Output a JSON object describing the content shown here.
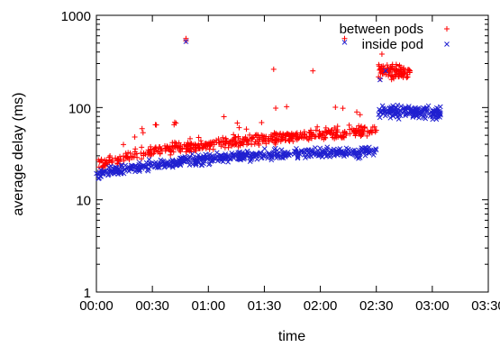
{
  "chart_data": {
    "type": "scatter",
    "title": "",
    "xlabel": "time",
    "ylabel": "average delay (ms)",
    "x_ticks": [
      "00:00",
      "00:30",
      "01:00",
      "01:30",
      "02:00",
      "02:30",
      "03:00",
      "03:30"
    ],
    "y_ticks": [
      "1",
      "10",
      "100",
      "1000"
    ],
    "xlim_minutes": [
      0,
      210
    ],
    "ylim": [
      1,
      1000
    ],
    "y_scale": "log",
    "grid": false,
    "legend": {
      "placement": "top-right"
    },
    "colors": {
      "between": "#ff0000",
      "inside": "#2020d0",
      "axis": "#000000"
    },
    "series": [
      {
        "name": "between pods",
        "marker": "+",
        "color": "#ff0000",
        "trend_minutes": [
          0,
          20,
          40,
          60,
          80,
          100,
          120,
          140,
          150
        ],
        "trend_values": [
          24,
          30,
          36,
          40,
          44,
          48,
          52,
          55,
          56
        ],
        "spread": 0.09,
        "after_jump": {
          "minutes": [
            151,
            168
          ],
          "values": [
            260,
            230
          ],
          "spread": 0.12
        },
        "outliers": [
          {
            "x": 48,
            "y": 560
          },
          {
            "x": 48,
            "y": 530
          },
          {
            "x": 95,
            "y": 260
          },
          {
            "x": 116,
            "y": 250
          },
          {
            "x": 133,
            "y": 560
          },
          {
            "x": 153,
            "y": 380
          }
        ]
      },
      {
        "name": "inside pod",
        "marker": "x",
        "color": "#2020d0",
        "trend_minutes": [
          0,
          20,
          40,
          60,
          80,
          100,
          120,
          140,
          150
        ],
        "trend_values": [
          19,
          22,
          25,
          28,
          30,
          31,
          32,
          33,
          33
        ],
        "spread": 0.08,
        "after_jump": {
          "minutes": [
            151,
            185
          ],
          "values": [
            95,
            85
          ],
          "spread": 0.1
        },
        "outliers": [
          {
            "x": 48,
            "y": 520
          },
          {
            "x": 133,
            "y": 510
          },
          {
            "x": 152,
            "y": 200
          },
          {
            "x": 155,
            "y": 250
          }
        ]
      }
    ]
  }
}
